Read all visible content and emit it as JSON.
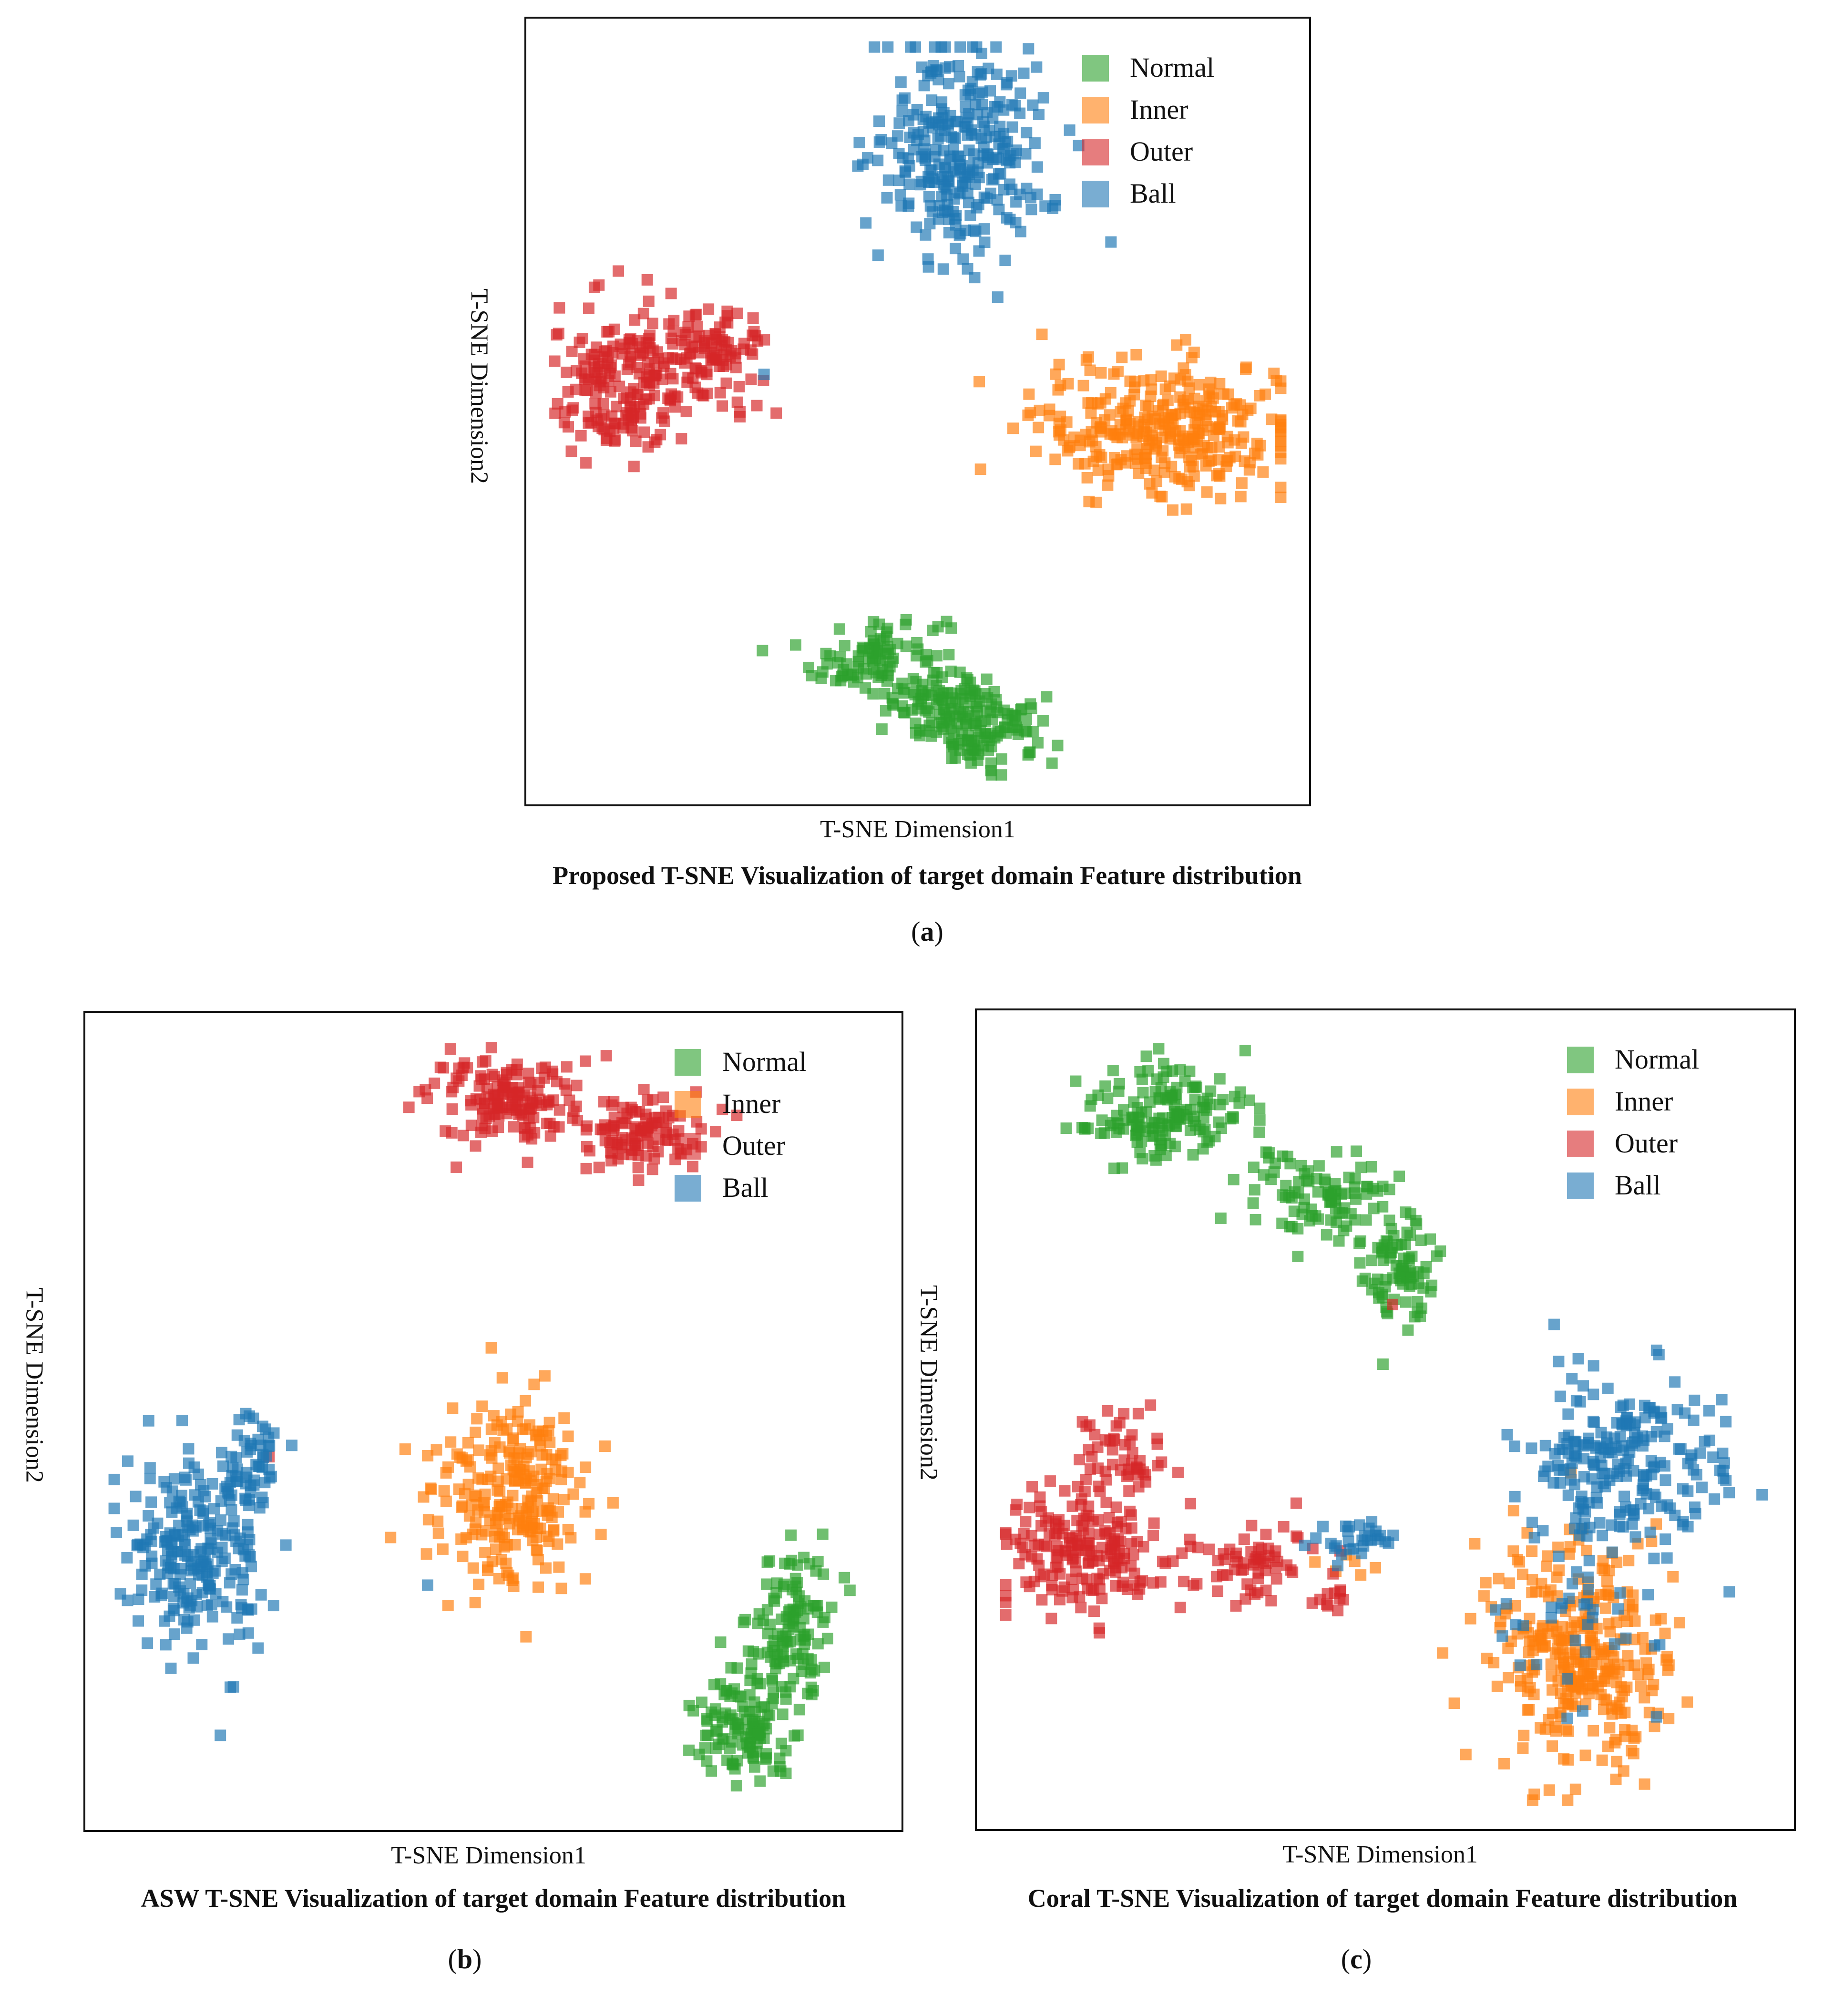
{
  "panel_labels": {
    "a": "a",
    "b": "b",
    "c": "c"
  },
  "chart_data": [
    {
      "id": "a",
      "type": "scatter",
      "title": "Proposed T-SNE Visualization of target domain Feature distribution",
      "xlabel": "T-SNE Dimension1",
      "ylabel": "T-SNE Dimension2",
      "xlim": [
        0,
        100
      ],
      "ylim": [
        0,
        100
      ],
      "grid": false,
      "legend_position": "top-right",
      "series": [
        {
          "name": "Normal",
          "color": "#2ca02c",
          "values": [
            {
              "cx": 45,
              "cy": 17,
              "sx": 5.0,
              "sy": 3.6,
              "n": 110
            },
            {
              "cx": 54,
              "cy": 11,
              "sx": 4.0,
              "sy": 2.2,
              "n": 70
            },
            {
              "cx": 59.5,
              "cy": 7,
              "sx": 5.0,
              "sy": 2.6,
              "n": 100
            }
          ]
        },
        {
          "name": "Inner",
          "color": "#ff7f0e",
          "values": [
            {
              "cx": 83,
              "cy": 48,
              "sx": 9.5,
              "sy": 5.0,
              "n": 320
            }
          ]
        },
        {
          "name": "Outer",
          "color": "#d62728",
          "values": [
            {
              "cx": 10,
              "cy": 53,
              "sx": 5.0,
              "sy": 5.5,
              "n": 160
            },
            {
              "cx": 21,
              "cy": 57,
              "sx": 5.0,
              "sy": 4.0,
              "n": 130
            }
          ]
        },
        {
          "name": "Ball",
          "color": "#1f77b4",
          "values": [
            {
              "cx": 56,
              "cy": 85,
              "sx": 6.5,
              "sy": 8.0,
              "n": 300
            },
            {
              "cx": 29.5,
              "cy": 55,
              "sx": 0.3,
              "sy": 0.3,
              "n": 1
            }
          ]
        }
      ]
    },
    {
      "id": "b",
      "type": "scatter",
      "title": "ASW T-SNE Visualization of target domain Feature distribution",
      "xlabel": "T-SNE Dimension1",
      "ylabel": "T-SNE Dimension2",
      "xlim": [
        0,
        100
      ],
      "ylim": [
        0,
        100
      ],
      "grid": false,
      "legend_position": "top-right",
      "series": [
        {
          "name": "Normal",
          "color": "#2ca02c",
          "values": [
            {
              "cx": 88,
              "cy": 24,
              "sx": 3.0,
              "sy": 6.0,
              "n": 120
            },
            {
              "cx": 82,
              "cy": 11,
              "sx": 3.5,
              "sy": 4.0,
              "n": 120
            }
          ]
        },
        {
          "name": "Inner",
          "color": "#ff7f0e",
          "values": [
            {
              "cx": 52,
              "cy": 41,
              "sx": 5.5,
              "sy": 6.5,
              "n": 240
            }
          ]
        },
        {
          "name": "Outer",
          "color": "#d62728",
          "values": [
            {
              "cx": 51,
              "cy": 91,
              "sx": 5.5,
              "sy": 3.0,
              "n": 150
            },
            {
              "cx": 68,
              "cy": 87,
              "sx": 5.0,
              "sy": 2.5,
              "n": 110
            },
            {
              "cx": 21.5,
              "cy": 45.5,
              "sx": 0.3,
              "sy": 0.3,
              "n": 1
            }
          ]
        },
        {
          "name": "Ball",
          "color": "#1f77b4",
          "values": [
            {
              "cx": 12,
              "cy": 33,
              "sx": 5.0,
              "sy": 7.0,
              "n": 230
            },
            {
              "cx": 19,
              "cy": 44,
              "sx": 2.5,
              "sy": 3.5,
              "n": 50
            },
            {
              "cx": 42,
              "cy": 29,
              "sx": 0.3,
              "sy": 0.3,
              "n": 1
            }
          ]
        }
      ]
    },
    {
      "id": "c",
      "type": "scatter",
      "title": "Coral T-SNE Visualization of target domain Feature distribution",
      "xlabel": "T-SNE Dimension1",
      "ylabel": "T-SNE Dimension2",
      "xlim": [
        0,
        100
      ],
      "ylim": [
        0,
        100
      ],
      "grid": false,
      "legend_position": "top-right",
      "series": [
        {
          "name": "Normal",
          "color": "#2ca02c",
          "values": [
            {
              "cx": 22,
              "cy": 89,
              "sx": 6.0,
              "sy": 3.5,
              "n": 160
            },
            {
              "cx": 42,
              "cy": 78,
              "sx": 5.5,
              "sy": 3.5,
              "n": 100
            },
            {
              "cx": 52,
              "cy": 69,
              "sx": 2.5,
              "sy": 4.0,
              "n": 80
            }
          ]
        },
        {
          "name": "Inner",
          "color": "#ff7f0e",
          "values": [
            {
              "cx": 74,
              "cy": 20,
              "sx": 6.5,
              "sy": 8.0,
              "n": 320
            },
            {
              "cx": 45,
              "cy": 31,
              "sx": 2.0,
              "sy": 1.0,
              "n": 6
            }
          ]
        },
        {
          "name": "Outer",
          "color": "#d62728",
          "values": [
            {
              "cx": 12,
              "cy": 33,
              "sx": 6.5,
              "sy": 5.0,
              "n": 190
            },
            {
              "cx": 17,
              "cy": 46,
              "sx": 3.0,
              "sy": 3.5,
              "n": 50
            },
            {
              "cx": 33,
              "cy": 32,
              "sx": 4.5,
              "sy": 2.5,
              "n": 60
            },
            {
              "cx": 43,
              "cy": 27,
              "sx": 1.5,
              "sy": 1.5,
              "n": 12
            },
            {
              "cx": 51,
              "cy": 65,
              "sx": 0.3,
              "sy": 0.3,
              "n": 1
            }
          ]
        },
        {
          "name": "Ball",
          "color": "#1f77b4",
          "values": [
            {
              "cx": 80,
              "cy": 45,
              "sx": 7.0,
              "sy": 6.0,
              "n": 220
            },
            {
              "cx": 46,
              "cy": 35,
              "sx": 3.0,
              "sy": 1.5,
              "n": 30
            },
            {
              "cx": 75,
              "cy": 25,
              "sx": 6.0,
              "sy": 7.0,
              "n": 40
            }
          ]
        }
      ]
    }
  ]
}
